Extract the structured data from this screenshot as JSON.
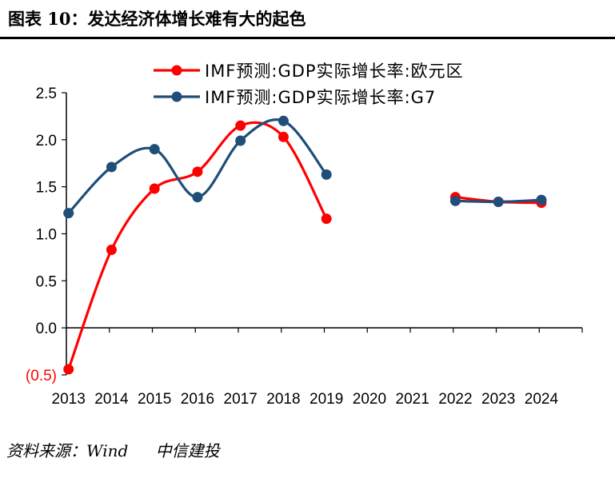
{
  "header": {
    "title": "图表 10：发达经济体增长难有大的起色"
  },
  "footer": {
    "source": "资料来源：Wind",
    "org": "中信建投"
  },
  "colors": {
    "series_red": "#ff0000",
    "series_blue": "#1f4e79",
    "axis": "#000000"
  },
  "chart_data": {
    "type": "line",
    "title": "",
    "xlabel": "",
    "ylabel": "",
    "categories": [
      "2013",
      "2014",
      "2015",
      "2016",
      "2017",
      "2018",
      "2019",
      "2020",
      "2021",
      "2022",
      "2023",
      "2024"
    ],
    "ylim": [
      -0.5,
      2.5
    ],
    "yticks": [
      -0.5,
      0.0,
      0.5,
      1.0,
      1.5,
      2.0,
      2.5
    ],
    "ytick_labels": [
      "(0.5)",
      "0.0",
      "0.5",
      "1.0",
      "1.5",
      "2.0",
      "2.5"
    ],
    "ytick_colors": [
      "#ff0000",
      "#000000",
      "#000000",
      "#000000",
      "#000000",
      "#000000",
      "#000000"
    ],
    "grid": false,
    "legend_position": "top",
    "smooth": true,
    "series": [
      {
        "name": "IMF预测:GDP实际增长率:欧元区",
        "color": "#ff0000",
        "values": [
          -0.44,
          0.83,
          1.48,
          1.66,
          2.15,
          2.03,
          1.16,
          null,
          null,
          1.39,
          1.34,
          1.33
        ]
      },
      {
        "name": "IMF预测:GDP实际增长率:G7",
        "color": "#1f4e79",
        "values": [
          1.22,
          1.71,
          1.9,
          1.39,
          1.99,
          2.2,
          1.63,
          null,
          null,
          1.35,
          1.34,
          1.36
        ]
      }
    ]
  }
}
